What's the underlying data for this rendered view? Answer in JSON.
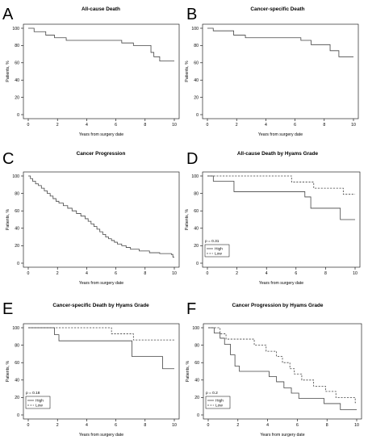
{
  "chart_data": [
    {
      "id": "A",
      "type": "line",
      "panel_letter": "A",
      "title": "All-cause Death",
      "xlabel": "Years from surgery date",
      "ylabel": "Patients, %",
      "xlim": [
        0,
        10
      ],
      "ylim": [
        0,
        100
      ],
      "xticks": [
        0,
        2,
        4,
        6,
        8,
        10
      ],
      "yticks": [
        0,
        20,
        40,
        60,
        80,
        100
      ],
      "step": true,
      "series": [
        {
          "style": "solid",
          "x": [
            0,
            0.4,
            1.2,
            1.8,
            2.6,
            6.4,
            7.2,
            8.4,
            8.6,
            9.0,
            10.0
          ],
          "y": [
            100,
            96,
            92,
            89,
            86,
            83,
            80,
            72,
            67,
            62,
            62
          ]
        }
      ]
    },
    {
      "id": "B",
      "type": "line",
      "panel_letter": "B",
      "title": "Cancer-specific Death",
      "xlabel": "Years from surgery date",
      "ylabel": "Patients, %",
      "xlim": [
        0,
        10
      ],
      "ylim": [
        0,
        100
      ],
      "xticks": [
        0,
        2,
        4,
        6,
        8,
        10
      ],
      "yticks": [
        0,
        20,
        40,
        60,
        80,
        100
      ],
      "step": true,
      "series": [
        {
          "style": "solid",
          "x": [
            0,
            0.4,
            1.8,
            2.6,
            6.4,
            7.1,
            8.4,
            9.0,
            10.0
          ],
          "y": [
            100,
            97,
            92,
            89,
            86,
            81,
            74,
            67,
            67
          ]
        }
      ]
    },
    {
      "id": "C",
      "type": "line",
      "panel_letter": "C",
      "title": "Cancer Progression",
      "xlabel": "Years from surgery date",
      "ylabel": "Patients, %",
      "xlim": [
        0,
        10
      ],
      "ylim": [
        0,
        100
      ],
      "xticks": [
        0,
        2,
        4,
        6,
        8,
        10
      ],
      "yticks": [
        0,
        20,
        40,
        60,
        80,
        100
      ],
      "step": true,
      "series": [
        {
          "style": "solid",
          "x": [
            0,
            0.15,
            0.3,
            0.5,
            0.7,
            0.9,
            1.1,
            1.3,
            1.5,
            1.7,
            1.9,
            2.1,
            2.4,
            2.7,
            3.0,
            3.3,
            3.6,
            3.9,
            4.1,
            4.3,
            4.5,
            4.7,
            4.9,
            5.1,
            5.3,
            5.5,
            5.7,
            5.9,
            6.1,
            6.4,
            6.7,
            7.0,
            7.6,
            8.3,
            9.0,
            9.8,
            9.9,
            10.0
          ],
          "y": [
            100,
            97,
            94,
            91,
            89,
            86,
            83,
            80,
            77,
            74,
            71,
            69,
            66,
            63,
            60,
            57,
            54,
            51,
            48,
            45,
            42,
            39,
            36,
            33,
            30,
            28,
            26,
            24,
            22,
            20,
            18,
            16,
            14,
            12,
            11,
            10,
            7,
            7
          ]
        }
      ]
    },
    {
      "id": "D",
      "type": "line",
      "panel_letter": "D",
      "title": "All-cause Death by Hyams Grade",
      "xlabel": "Years from surgery date",
      "ylabel": "Patients, %",
      "xlim": [
        0,
        10
      ],
      "ylim": [
        0,
        100
      ],
      "xticks": [
        0,
        2,
        4,
        6,
        8,
        10
      ],
      "yticks": [
        0,
        20,
        40,
        60,
        80,
        100
      ],
      "step": true,
      "pvalue": "p = 0.31",
      "legend": [
        "High",
        "Low"
      ],
      "series": [
        {
          "name": "High",
          "style": "solid",
          "x": [
            0,
            0.4,
            1.8,
            6.6,
            7.0,
            9.0,
            10.0
          ],
          "y": [
            100,
            94,
            82,
            76,
            63,
            50,
            50
          ]
        },
        {
          "name": "Low",
          "style": "dashed",
          "x": [
            0,
            5.7,
            7.2,
            8.5,
            9.2,
            10.0
          ],
          "y": [
            100,
            93,
            86,
            86,
            79,
            79
          ]
        }
      ]
    },
    {
      "id": "E",
      "type": "line",
      "panel_letter": "E",
      "title": "Cancer-specific Death by Hyams Grade",
      "xlabel": "Years from surgery date",
      "ylabel": "Patients, %",
      "xlim": [
        0,
        10
      ],
      "ylim": [
        0,
        100
      ],
      "xticks": [
        0,
        2,
        4,
        6,
        8,
        10
      ],
      "yticks": [
        0,
        20,
        40,
        60,
        80,
        100
      ],
      "step": true,
      "pvalue": "p = 0.18",
      "legend": [
        "High",
        "Low"
      ],
      "series": [
        {
          "name": "High",
          "style": "solid",
          "x": [
            0,
            1.8,
            2.1,
            7.1,
            9.2,
            10.0
          ],
          "y": [
            100,
            92,
            85,
            67,
            53,
            53
          ]
        },
        {
          "name": "Low",
          "style": "dashed",
          "x": [
            0,
            5.7,
            7.2,
            10.0
          ],
          "y": [
            100,
            93,
            86,
            86
          ]
        }
      ]
    },
    {
      "id": "F",
      "type": "line",
      "panel_letter": "F",
      "title": "Cancer Progression by Hyams Grade",
      "xlabel": "Years from surgery date",
      "ylabel": "Patients, %",
      "xlim": [
        0,
        10
      ],
      "ylim": [
        0,
        100
      ],
      "xticks": [
        0,
        2,
        4,
        6,
        8,
        10
      ],
      "yticks": [
        0,
        20,
        40,
        60,
        80,
        100
      ],
      "step": true,
      "pvalue": "p = 0.2",
      "legend": [
        "High",
        "Low"
      ],
      "series": [
        {
          "name": "High",
          "style": "solid",
          "x": [
            0,
            0.4,
            0.8,
            1.1,
            1.5,
            1.8,
            2.1,
            4.1,
            4.6,
            5.1,
            5.6,
            6.1,
            7.8,
            8.9,
            10.0
          ],
          "y": [
            100,
            94,
            88,
            81,
            69,
            56,
            50,
            44,
            38,
            31,
            25,
            19,
            13,
            6,
            6
          ]
        },
        {
          "name": "Low",
          "style": "dashed",
          "x": [
            0,
            0.8,
            1.2,
            3.1,
            3.9,
            4.6,
            5.0,
            5.5,
            5.8,
            6.3,
            7.1,
            7.9,
            8.6,
            9.9,
            10.0
          ],
          "y": [
            100,
            93,
            87,
            80,
            73,
            67,
            60,
            53,
            47,
            40,
            33,
            27,
            20,
            14,
            14
          ]
        }
      ]
    }
  ]
}
